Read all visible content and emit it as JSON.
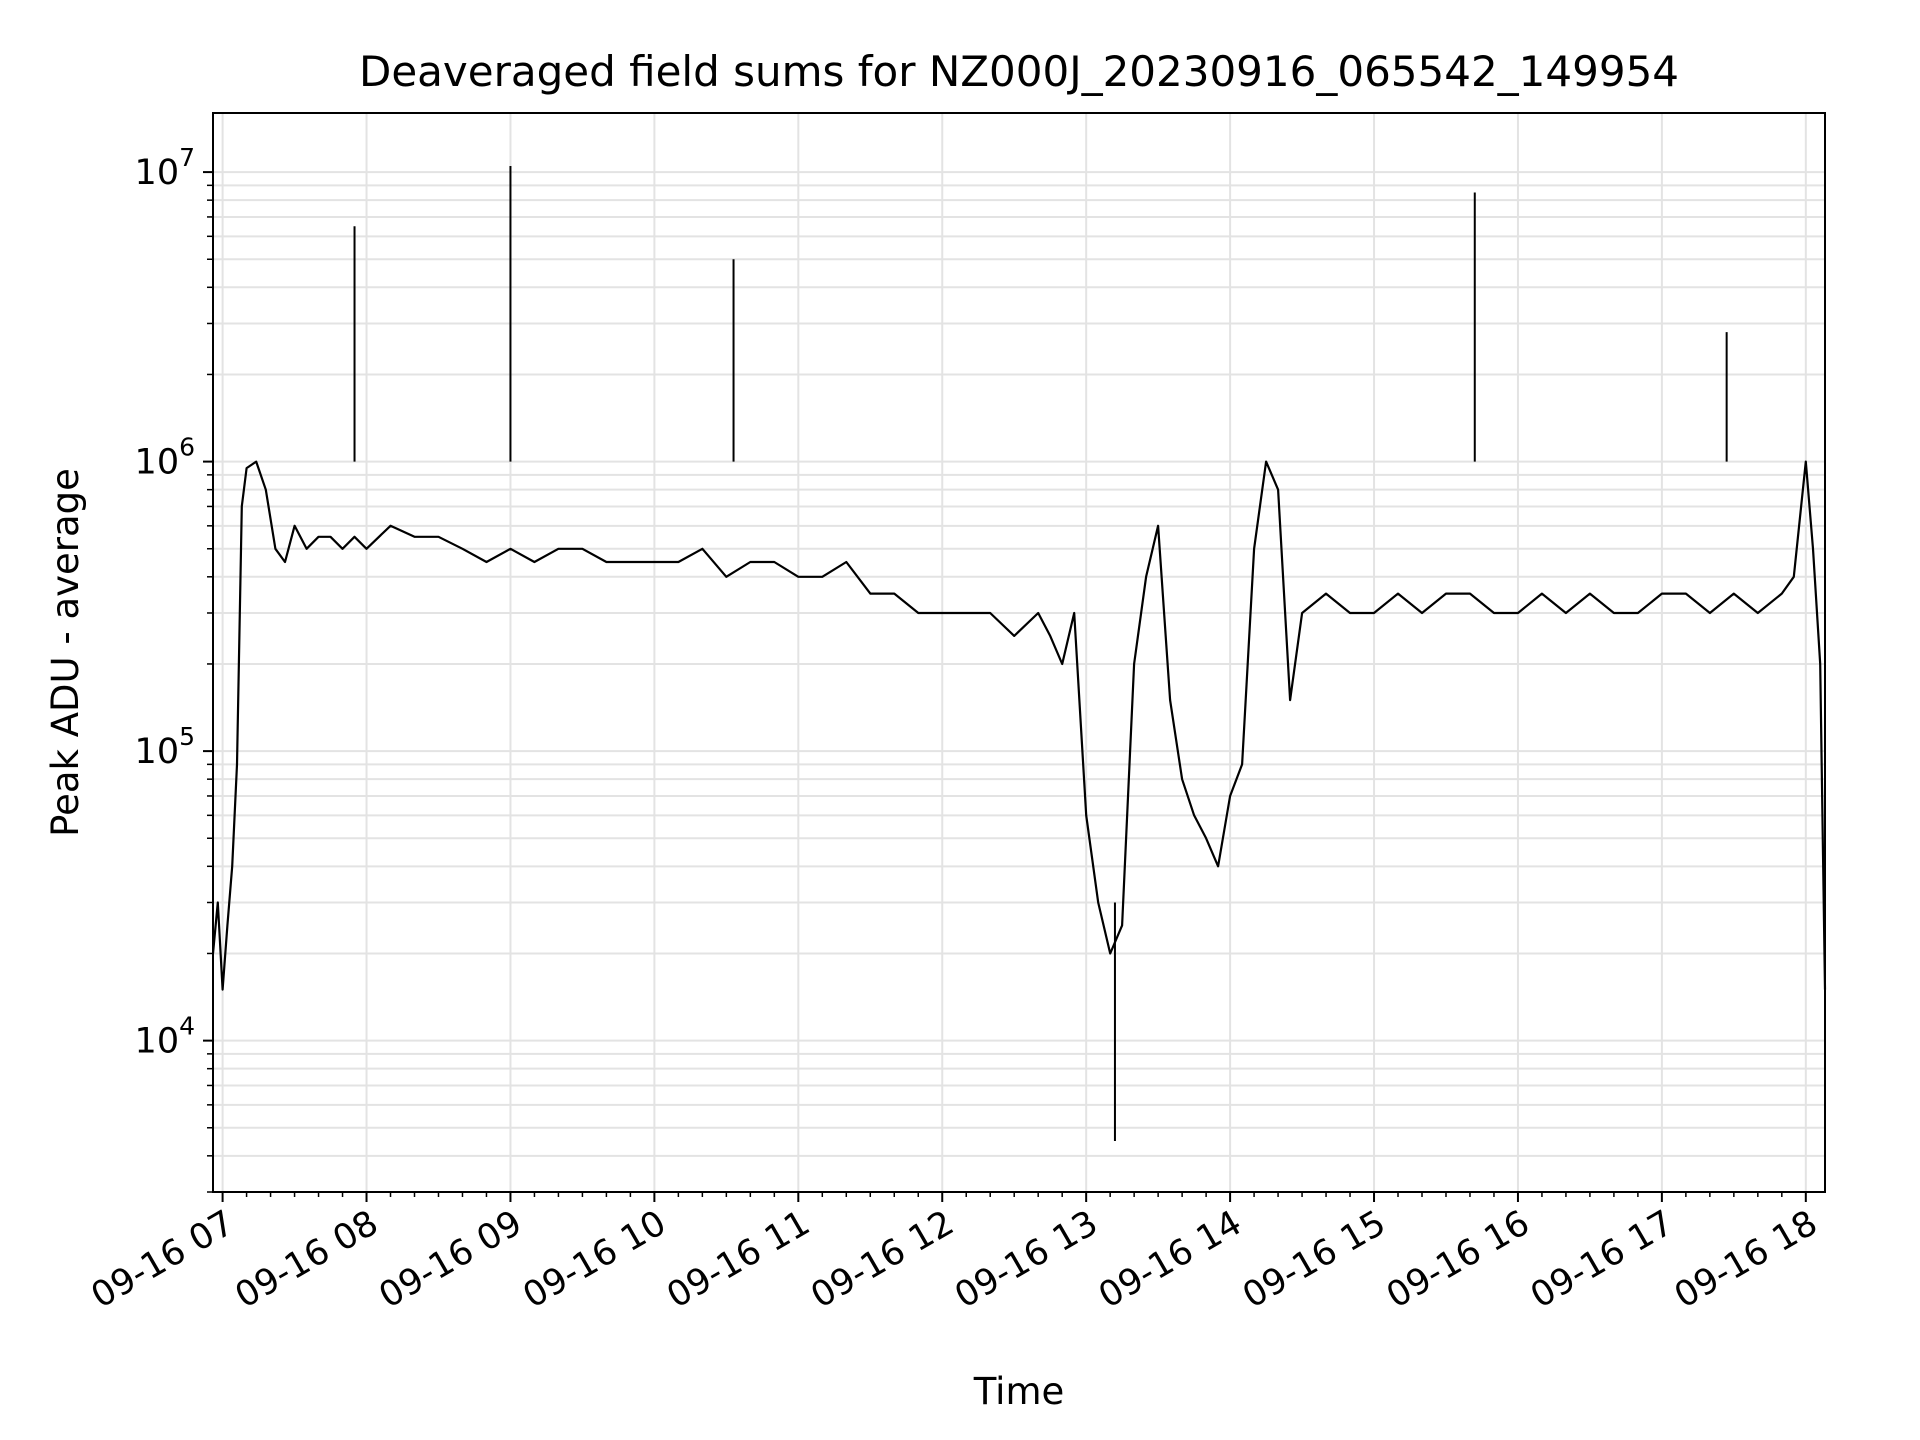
{
  "chart_data": {
    "type": "line",
    "title": "Deaveraged field sums for NZ000J_20230916_065542_149954",
    "xlabel": "Time",
    "ylabel": "Peak ADU - average",
    "yscale": "log",
    "ylim": [
      3000,
      16000000
    ],
    "xlim": [
      "09-16 06:56",
      "09-16 18:08"
    ],
    "grid": true,
    "line_color": "#000000",
    "grid_color": "#e3e3e3",
    "x_ticks": [
      "09-16 07",
      "09-16 08",
      "09-16 09",
      "09-16 10",
      "09-16 11",
      "09-16 12",
      "09-16 13",
      "09-16 14",
      "09-16 15",
      "09-16 16",
      "09-16 17",
      "09-16 18"
    ],
    "y_ticks": [
      {
        "value": 10000,
        "base": "10",
        "exp": "4"
      },
      {
        "value": 100000,
        "base": "10",
        "exp": "5"
      },
      {
        "value": 1000000,
        "base": "10",
        "exp": "6"
      },
      {
        "value": 10000000,
        "base": "10",
        "exp": "7"
      }
    ],
    "series": [
      {
        "x": [
          "09-16 06:56",
          "09-16 06:58",
          "09-16 07:00",
          "09-16 07:02",
          "09-16 07:04",
          "09-16 07:06",
          "09-16 07:08",
          "09-16 07:10",
          "09-16 07:14",
          "09-16 07:18",
          "09-16 07:22",
          "09-16 07:26",
          "09-16 07:30",
          "09-16 07:35",
          "09-16 07:40",
          "09-16 07:45",
          "09-16 07:50",
          "09-16 07:55",
          "09-16 08:00",
          "09-16 08:10",
          "09-16 08:20",
          "09-16 08:30",
          "09-16 08:40",
          "09-16 08:50",
          "09-16 09:00",
          "09-16 09:10",
          "09-16 09:20",
          "09-16 09:30",
          "09-16 09:40",
          "09-16 09:50",
          "09-16 10:00",
          "09-16 10:10",
          "09-16 10:20",
          "09-16 10:30",
          "09-16 10:40",
          "09-16 10:50",
          "09-16 11:00",
          "09-16 11:10",
          "09-16 11:20",
          "09-16 11:30",
          "09-16 11:40",
          "09-16 11:50",
          "09-16 12:00",
          "09-16 12:10",
          "09-16 12:20",
          "09-16 12:30",
          "09-16 12:40",
          "09-16 12:45",
          "09-16 12:50",
          "09-16 12:55",
          "09-16 13:00",
          "09-16 13:05",
          "09-16 13:10",
          "09-16 13:15",
          "09-16 13:20",
          "09-16 13:25",
          "09-16 13:30",
          "09-16 13:35",
          "09-16 13:40",
          "09-16 13:45",
          "09-16 13:50",
          "09-16 13:55",
          "09-16 14:00",
          "09-16 14:05",
          "09-16 14:10",
          "09-16 14:15",
          "09-16 14:20",
          "09-16 14:25",
          "09-16 14:30",
          "09-16 14:40",
          "09-16 14:50",
          "09-16 15:00",
          "09-16 15:10",
          "09-16 15:20",
          "09-16 15:30",
          "09-16 15:40",
          "09-16 15:50",
          "09-16 16:00",
          "09-16 16:10",
          "09-16 16:20",
          "09-16 16:30",
          "09-16 16:40",
          "09-16 16:50",
          "09-16 17:00",
          "09-16 17:10",
          "09-16 17:20",
          "09-16 17:30",
          "09-16 17:40",
          "09-16 17:50",
          "09-16 17:55",
          "09-16 18:00",
          "09-16 18:03",
          "09-16 18:06",
          "09-16 18:08"
        ],
        "values": [
          20000,
          30000,
          15000,
          25000,
          40000,
          90000,
          700000,
          950000,
          1000000,
          800000,
          500000,
          450000,
          600000,
          500000,
          550000,
          550000,
          500000,
          550000,
          500000,
          600000,
          550000,
          550000,
          500000,
          450000,
          500000,
          450000,
          500000,
          500000,
          450000,
          450000,
          450000,
          450000,
          500000,
          400000,
          450000,
          450000,
          400000,
          400000,
          450000,
          350000,
          350000,
          300000,
          300000,
          300000,
          300000,
          250000,
          300000,
          250000,
          200000,
          300000,
          60000,
          30000,
          20000,
          25000,
          200000,
          400000,
          600000,
          150000,
          80000,
          60000,
          50000,
          40000,
          70000,
          90000,
          500000,
          1000000,
          800000,
          150000,
          300000,
          350000,
          300000,
          300000,
          350000,
          300000,
          350000,
          350000,
          300000,
          300000,
          350000,
          300000,
          350000,
          300000,
          300000,
          350000,
          350000,
          300000,
          350000,
          300000,
          350000,
          400000,
          1000000,
          500000,
          200000,
          15000
        ]
      }
    ],
    "annotations": [
      {
        "x": "09-16 09:00",
        "y": 10500000
      },
      {
        "x": "09-16 07:55",
        "y": 6500000
      },
      {
        "x": "09-16 15:42",
        "y": 8500000
      },
      {
        "x": "09-16 13:12",
        "y": 4500
      },
      {
        "x": "09-16 17:27",
        "y": 2800000
      },
      {
        "x": "09-16 10:33",
        "y": 5000000
      }
    ]
  }
}
